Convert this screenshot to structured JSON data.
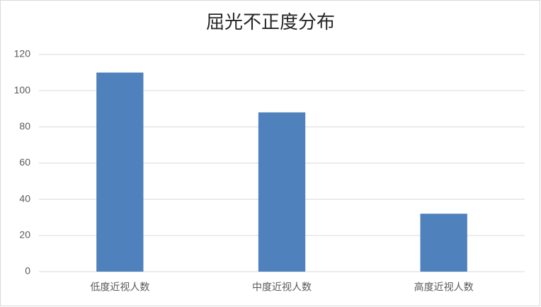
{
  "chart_data": {
    "type": "bar",
    "title": "屈光不正度分布",
    "categories": [
      "低度近视人数",
      "中度近视人数",
      "高度近视人数"
    ],
    "values": [
      110,
      88,
      32
    ],
    "color": "#4f81bd",
    "ylim": [
      0,
      120
    ],
    "yticks": [
      0,
      20,
      40,
      60,
      80,
      100,
      120
    ],
    "grid": true
  }
}
